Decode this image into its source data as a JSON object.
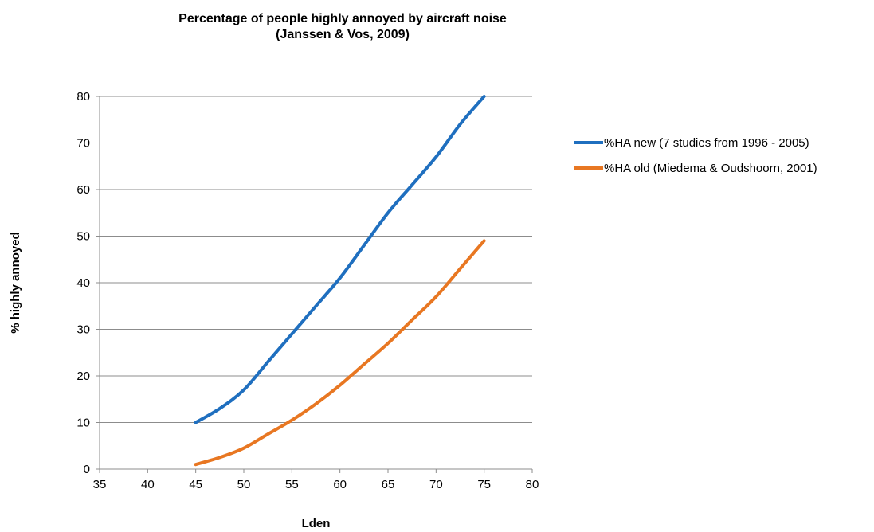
{
  "chart_data": {
    "type": "line",
    "title": "Percentage of people highly annoyed by aircraft noise",
    "subtitle": "(Janssen & Vos, 2009)",
    "xlabel": "Lden",
    "ylabel": "% highly annoyed",
    "xlim": [
      35,
      80
    ],
    "ylim": [
      0,
      80
    ],
    "xticks": [
      35,
      40,
      45,
      50,
      55,
      60,
      65,
      70,
      75,
      80
    ],
    "yticks": [
      0,
      10,
      20,
      30,
      40,
      50,
      60,
      70,
      80
    ],
    "grid": "horizontal",
    "legend_position": "right",
    "series": [
      {
        "name": "%HA new (7 studies from 1996 - 2005)",
        "color": "#1f6fbf",
        "x": [
          45,
          47.5,
          50,
          52.5,
          55,
          57.5,
          60,
          62.5,
          65,
          67.5,
          70,
          72.5,
          75
        ],
        "y": [
          10,
          13,
          17,
          23,
          29,
          35,
          41,
          48,
          55,
          61,
          67,
          74,
          80
        ]
      },
      {
        "name": "%HA old (Miedema & Oudshoorn, 2001)",
        "color": "#e87722",
        "x": [
          45,
          47.5,
          50,
          52.5,
          55,
          57.5,
          60,
          62.5,
          65,
          67.5,
          70,
          72.5,
          75
        ],
        "y": [
          1,
          2.5,
          4.5,
          7.5,
          10.5,
          14,
          18,
          22.5,
          27,
          32,
          37,
          43,
          49
        ]
      }
    ]
  }
}
